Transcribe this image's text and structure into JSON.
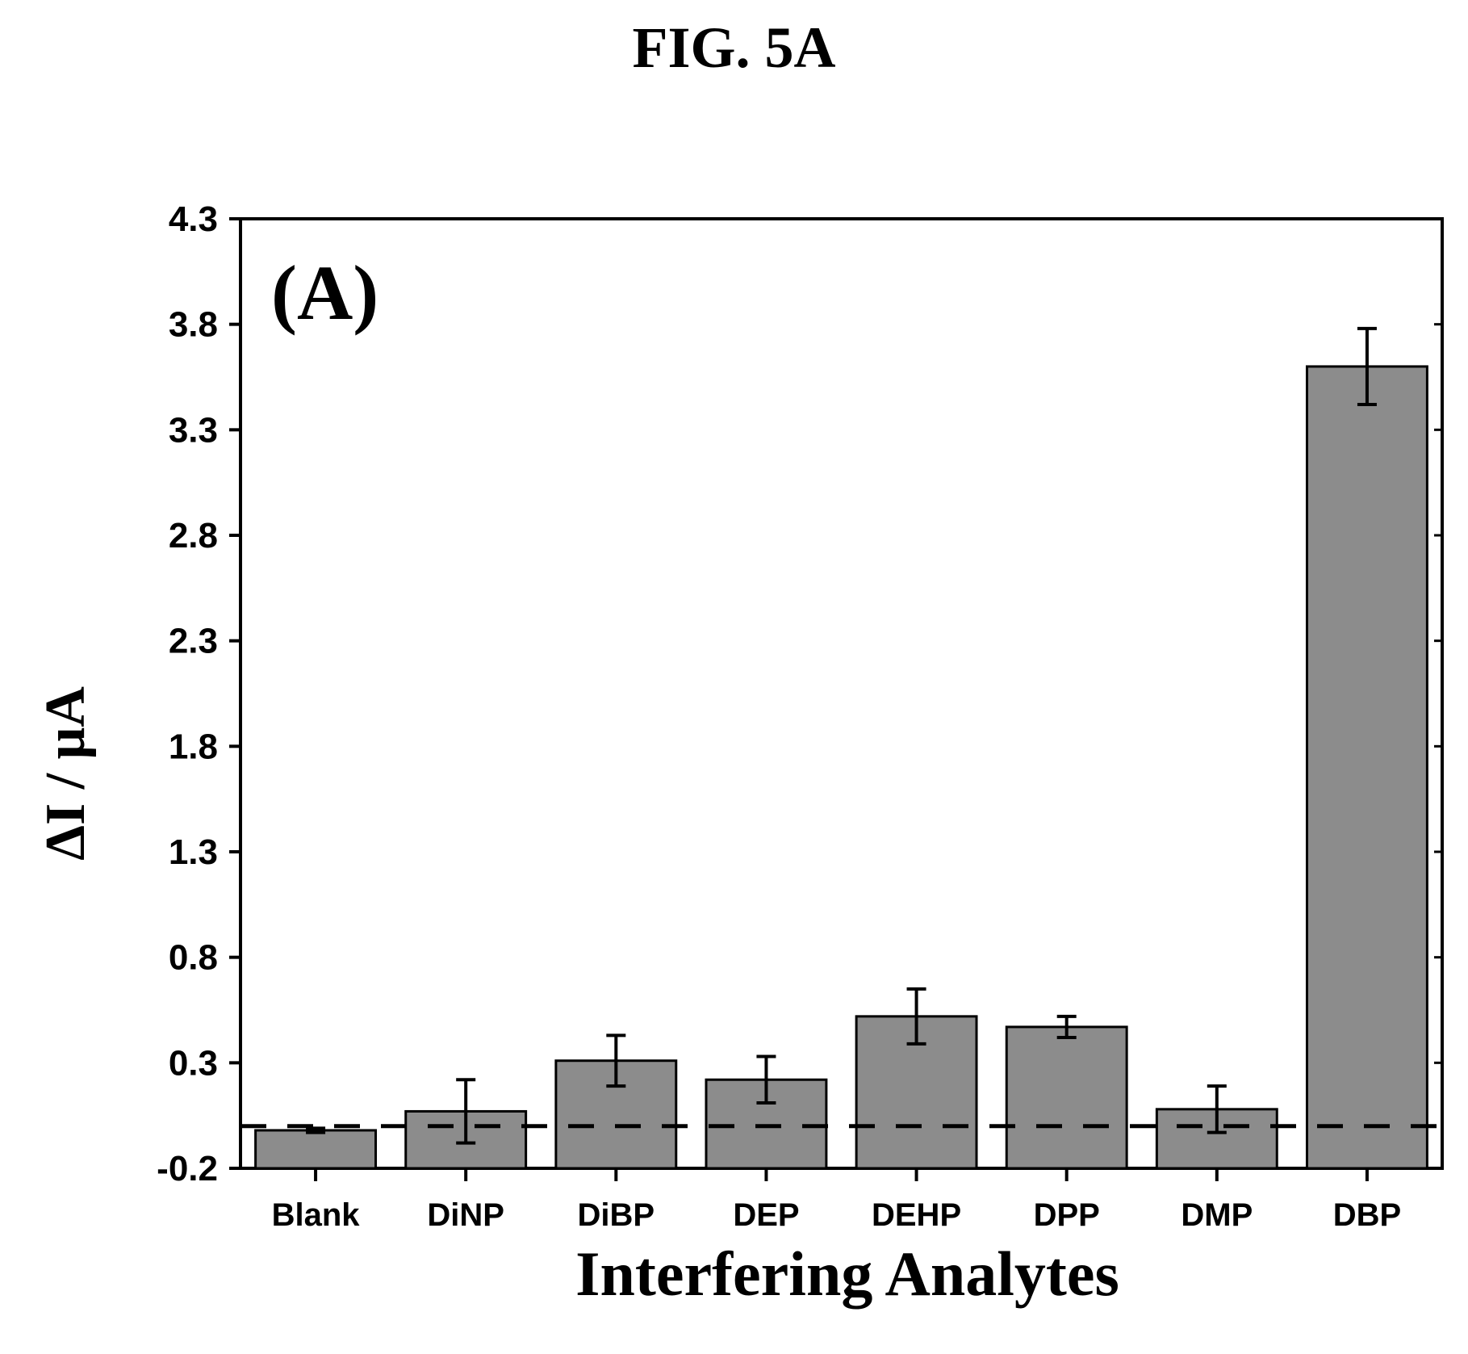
{
  "figure": {
    "title": "FIG. 5A"
  },
  "chart_data": {
    "type": "bar",
    "panel_label": "(A)",
    "categories": [
      "Blank",
      "DiNP",
      "DiBP",
      "DEP",
      "DEHP",
      "DPP",
      "DMP",
      "DBP"
    ],
    "series": [
      {
        "values": [
          -0.02,
          0.07,
          0.31,
          0.22,
          0.52,
          0.47,
          0.08,
          3.6
        ],
        "errors": [
          0.01,
          0.15,
          0.12,
          0.11,
          0.13,
          0.05,
          0.11,
          0.18
        ]
      }
    ],
    "baseline": 0.0,
    "xlabel": "Interfering Analytes",
    "ylabel": "ΔI / μA",
    "ylim": [
      -0.2,
      4.3
    ],
    "yticks": [
      "-0.2",
      "0.3",
      "0.8",
      "1.3",
      "1.8",
      "2.3",
      "2.8",
      "3.3",
      "3.8",
      "4.3"
    ],
    "grid": false,
    "legend": "none",
    "colors": {
      "bar": "#8c8c8c",
      "axis": "#000000"
    }
  }
}
